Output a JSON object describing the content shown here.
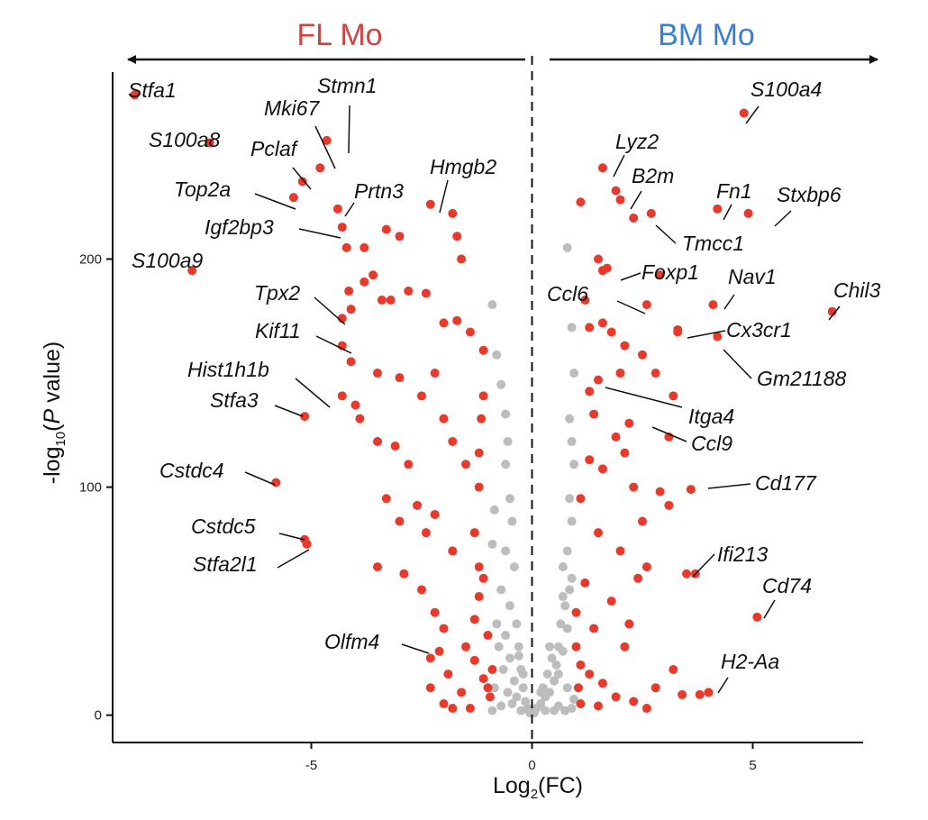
{
  "chart_data": {
    "type": "scatter",
    "title": "",
    "xlabel": "Log2(FC)",
    "ylabel": "-log10(P value)",
    "xlim": [
      -9.5,
      7.5
    ],
    "ylim": [
      -12,
      282
    ],
    "x_ticks": [
      -5,
      0,
      5
    ],
    "y_ticks": [
      0,
      100,
      200
    ],
    "grid": false,
    "reference_line": {
      "x": 0,
      "style": "dashed"
    },
    "groups": {
      "left": {
        "label": "FL Mo",
        "color": "#cc4444"
      },
      "right": {
        "label": "BM Mo",
        "color": "#3b7fd4"
      }
    },
    "colors": {
      "significant": "#e8392b",
      "not_significant": "#bdbdbd"
    },
    "series": [
      {
        "name": "significant",
        "points": [
          [
            -9.0,
            272
          ],
          [
            -7.3,
            251
          ],
          [
            -7.7,
            195
          ],
          [
            -5.8,
            102
          ],
          [
            -5.1,
            75
          ],
          [
            -5.15,
            77
          ],
          [
            -5.15,
            131
          ],
          [
            -4.65,
            252
          ],
          [
            -5.2,
            234
          ],
          [
            -4.8,
            240
          ],
          [
            -5.4,
            227
          ],
          [
            -4.4,
            222
          ],
          [
            -4.3,
            214
          ],
          [
            -4.2,
            205
          ],
          [
            -3.8,
            205
          ],
          [
            -3.3,
            213
          ],
          [
            -3.0,
            210
          ],
          [
            -2.3,
            224
          ],
          [
            -1.8,
            220
          ],
          [
            -1.7,
            210
          ],
          [
            -1.6,
            200
          ],
          [
            -4.3,
            174
          ],
          [
            -4.1,
            178
          ],
          [
            -4.15,
            186
          ],
          [
            -3.8,
            190
          ],
          [
            -3.6,
            193
          ],
          [
            -3.4,
            182
          ],
          [
            -3.2,
            182
          ],
          [
            -2.8,
            186
          ],
          [
            -2.4,
            185
          ],
          [
            -2.0,
            172
          ],
          [
            -1.7,
            173
          ],
          [
            -1.4,
            168
          ],
          [
            -1.1,
            160
          ],
          [
            -4.3,
            162
          ],
          [
            -4.1,
            155
          ],
          [
            -4.3,
            140
          ],
          [
            -4.0,
            136
          ],
          [
            -3.5,
            150
          ],
          [
            -3.0,
            148
          ],
          [
            -2.5,
            140
          ],
          [
            -2.2,
            150
          ],
          [
            -2.0,
            130
          ],
          [
            -1.8,
            120
          ],
          [
            -1.5,
            110
          ],
          [
            -3.9,
            130
          ],
          [
            -3.5,
            120
          ],
          [
            -3.1,
            118
          ],
          [
            -2.8,
            110
          ],
          [
            -3.3,
            95
          ],
          [
            -3.0,
            85
          ],
          [
            -2.6,
            92
          ],
          [
            -2.4,
            80
          ],
          [
            -2.2,
            88
          ],
          [
            -1.8,
            72
          ],
          [
            -3.5,
            65
          ],
          [
            -2.9,
            62
          ],
          [
            -2.5,
            55
          ],
          [
            -2.2,
            45
          ],
          [
            -2.0,
            38
          ],
          [
            -1.5,
            30
          ],
          [
            -1.3,
            42
          ],
          [
            -1.2,
            52
          ],
          [
            -1.1,
            60
          ],
          [
            -1.0,
            35
          ],
          [
            -0.9,
            20
          ],
          [
            -1.0,
            12
          ],
          [
            -0.95,
            8
          ],
          [
            -1.1,
            16
          ],
          [
            -1.3,
            24
          ],
          [
            -1.6,
            10
          ],
          [
            -1.9,
            18
          ],
          [
            -2.1,
            28
          ],
          [
            -2.3,
            25
          ],
          [
            -2.3,
            12
          ],
          [
            -2.0,
            5
          ],
          [
            -1.4,
            3
          ],
          [
            -1.8,
            3
          ],
          [
            -1.2,
            65
          ],
          [
            -1.3,
            80
          ],
          [
            -1.2,
            100
          ],
          [
            -1.2,
            115
          ],
          [
            -1.15,
            130
          ],
          [
            -1.1,
            140
          ],
          [
            1.1,
            225
          ],
          [
            1.6,
            240
          ],
          [
            1.9,
            230
          ],
          [
            2.0,
            226
          ],
          [
            2.3,
            218
          ],
          [
            2.7,
            220
          ],
          [
            1.5,
            200
          ],
          [
            1.6,
            195
          ],
          [
            1.7,
            196
          ],
          [
            2.9,
            193
          ],
          [
            1.2,
            182
          ],
          [
            2.6,
            180
          ],
          [
            1.3,
            170
          ],
          [
            1.6,
            172
          ],
          [
            1.8,
            168
          ],
          [
            2.1,
            162
          ],
          [
            2.5,
            158
          ],
          [
            2.0,
            150
          ],
          [
            1.5,
            147
          ],
          [
            2.8,
            150
          ],
          [
            3.2,
            140
          ],
          [
            1.3,
            142
          ],
          [
            1.4,
            132
          ],
          [
            2.2,
            128
          ],
          [
            3.1,
            122
          ],
          [
            1.9,
            122
          ],
          [
            1.3,
            112
          ],
          [
            1.6,
            108
          ],
          [
            2.3,
            100
          ],
          [
            2.9,
            98
          ],
          [
            3.1,
            92
          ],
          [
            3.6,
            99
          ],
          [
            1.1,
            95
          ],
          [
            1.5,
            80
          ],
          [
            2.0,
            72
          ],
          [
            2.6,
            65
          ],
          [
            3.5,
            62
          ],
          [
            3.7,
            62
          ],
          [
            2.4,
            60
          ],
          [
            1.8,
            50
          ],
          [
            1.4,
            38
          ],
          [
            2.1,
            30
          ],
          [
            1.1,
            22
          ],
          [
            1.3,
            18
          ],
          [
            1.6,
            14
          ],
          [
            1.9,
            8
          ],
          [
            2.3,
            6
          ],
          [
            2.8,
            12
          ],
          [
            3.2,
            20
          ],
          [
            2.2,
            40
          ],
          [
            1.2,
            58
          ],
          [
            1.0,
            45
          ],
          [
            1.0,
            30
          ],
          [
            1.05,
            12
          ],
          [
            1.1,
            5
          ],
          [
            1.5,
            4
          ],
          [
            2.6,
            3
          ],
          [
            3.4,
            9
          ],
          [
            4.0,
            10
          ],
          [
            3.8,
            9
          ],
          [
            2.5,
            85
          ],
          [
            2.1,
            115
          ],
          [
            3.3,
            168
          ],
          [
            4.1,
            180
          ],
          [
            4.9,
            220
          ],
          [
            4.2,
            222
          ],
          [
            4.8,
            264
          ],
          [
            4.2,
            166
          ],
          [
            6.8,
            177
          ],
          [
            5.1,
            43
          ],
          [
            3.3,
            169
          ]
        ]
      },
      {
        "name": "not_significant",
        "points": [
          [
            -0.9,
            180
          ],
          [
            -0.8,
            158
          ],
          [
            -0.7,
            145
          ],
          [
            -0.6,
            132
          ],
          [
            -0.55,
            120
          ],
          [
            -0.6,
            110
          ],
          [
            -0.5,
            95
          ],
          [
            -0.45,
            85
          ],
          [
            -0.6,
            72
          ],
          [
            -0.4,
            65
          ],
          [
            -0.7,
            55
          ],
          [
            -0.5,
            48
          ],
          [
            -0.35,
            40
          ],
          [
            -0.6,
            35
          ],
          [
            -0.3,
            30
          ],
          [
            -0.5,
            25
          ],
          [
            -0.25,
            20
          ],
          [
            -0.4,
            15
          ],
          [
            -0.2,
            12
          ],
          [
            -0.35,
            8
          ],
          [
            -0.15,
            6
          ],
          [
            -0.1,
            3
          ],
          [
            -0.25,
            2
          ],
          [
            -0.05,
            1
          ],
          [
            -0.8,
            40
          ],
          [
            -0.75,
            30
          ],
          [
            -0.65,
            20
          ],
          [
            -0.85,
            12
          ],
          [
            -0.55,
            10
          ],
          [
            -0.45,
            5
          ],
          [
            -0.7,
            4
          ],
          [
            -0.9,
            2
          ],
          [
            0.05,
            1
          ],
          [
            0.1,
            3
          ],
          [
            0.2,
            5
          ],
          [
            0.3,
            8
          ],
          [
            0.25,
            12
          ],
          [
            0.4,
            10
          ],
          [
            0.35,
            18
          ],
          [
            0.5,
            15
          ],
          [
            0.45,
            25
          ],
          [
            0.55,
            22
          ],
          [
            0.6,
            30
          ],
          [
            0.7,
            28
          ],
          [
            0.65,
            40
          ],
          [
            0.8,
            38
          ],
          [
            0.75,
            48
          ],
          [
            0.85,
            55
          ],
          [
            0.9,
            60
          ],
          [
            0.7,
            65
          ],
          [
            0.8,
            72
          ],
          [
            0.9,
            85
          ],
          [
            0.85,
            95
          ],
          [
            0.95,
            110
          ],
          [
            0.9,
            120
          ],
          [
            0.85,
            130
          ],
          [
            0.95,
            150
          ],
          [
            0.9,
            170
          ],
          [
            0.8,
            205
          ],
          [
            0.6,
            4
          ],
          [
            0.75,
            2
          ],
          [
            0.9,
            3
          ],
          [
            0.5,
            2
          ],
          [
            0.3,
            2
          ],
          [
            0.95,
            7
          ],
          [
            0.8,
            12
          ],
          [
            0.6,
            18
          ],
          [
            -0.2,
            18
          ],
          [
            -0.3,
            26
          ],
          [
            -0.9,
            75
          ],
          [
            -0.85,
            90
          ],
          [
            0.2,
            10
          ],
          [
            0.4,
            30
          ],
          [
            0.7,
            52
          ]
        ]
      }
    ],
    "labels": [
      {
        "text": "Stfa1"
      },
      {
        "text": "Stmn1"
      },
      {
        "text": "Mki67"
      },
      {
        "text": "S100a8"
      },
      {
        "text": "Pclaf"
      },
      {
        "text": "Top2a"
      },
      {
        "text": "Prtn3"
      },
      {
        "text": "Igf2bp3"
      },
      {
        "text": "Hmgb2"
      },
      {
        "text": "S100a9"
      },
      {
        "text": "Tpx2"
      },
      {
        "text": "Kif11"
      },
      {
        "text": "Hist1h1b"
      },
      {
        "text": "Stfa3"
      },
      {
        "text": "Cstdc4"
      },
      {
        "text": "Cstdc5"
      },
      {
        "text": "Stfa2l1"
      },
      {
        "text": "Olfm4"
      },
      {
        "text": "S100a4"
      },
      {
        "text": "Lyz2"
      },
      {
        "text": "B2m"
      },
      {
        "text": "Fn1"
      },
      {
        "text": "Stxbp6"
      },
      {
        "text": "Tmcc1"
      },
      {
        "text": "Foxp1"
      },
      {
        "text": "Nav1"
      },
      {
        "text": "Chil3"
      },
      {
        "text": "Ccl6"
      },
      {
        "text": "Cx3cr1"
      },
      {
        "text": "Gm21188"
      },
      {
        "text": "Itga4"
      },
      {
        "text": "Ccl9"
      },
      {
        "text": "Cd177"
      },
      {
        "text": "Ifi213"
      },
      {
        "text": "Cd74"
      },
      {
        "text": "H2-Aa"
      }
    ]
  }
}
